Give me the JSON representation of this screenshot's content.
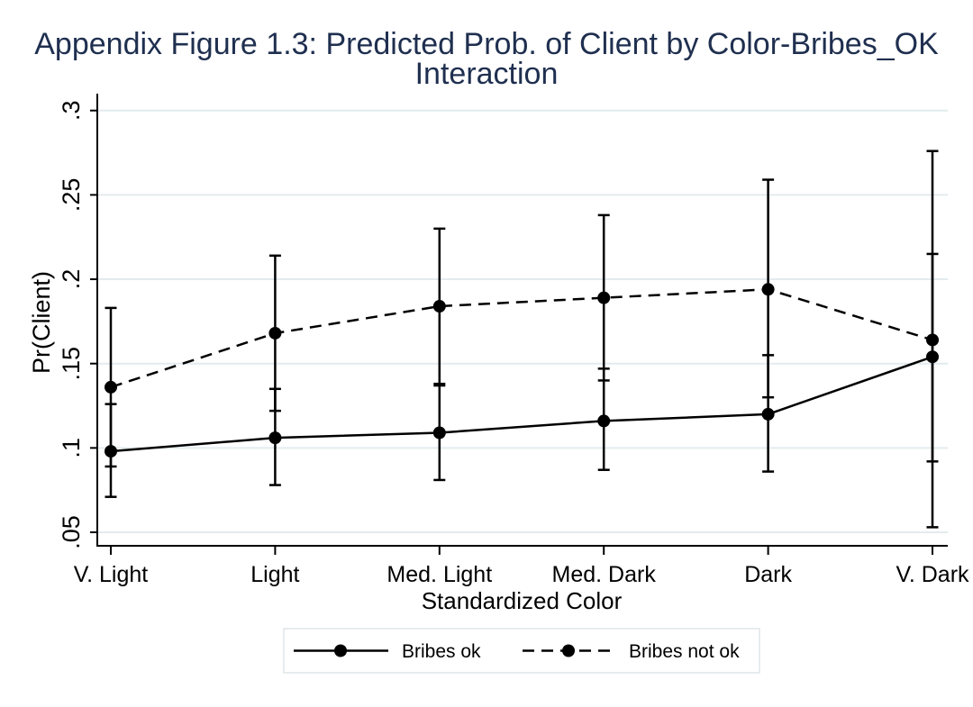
{
  "chart_data": {
    "type": "line",
    "title": "Appendix Figure 1.3: Predicted Prob. of Client by Color-Bribes_OK Interaction",
    "xlabel": "Standardized Color",
    "ylabel": "Pr(Client)",
    "categories": [
      "V. Light",
      "Light",
      "Med. Light",
      "Med. Dark",
      "Dark",
      "V. Dark"
    ],
    "ylim": [
      0.042,
      0.31
    ],
    "yticks": [
      0.05,
      0.1,
      0.15,
      0.2,
      0.25,
      0.3
    ],
    "ytick_labels": [
      ".05",
      ".1",
      ".15",
      ".2",
      ".25",
      ".3"
    ],
    "grid": true,
    "legend_position": "bottom",
    "series": [
      {
        "name": "Bribes ok",
        "dashed": false,
        "color": "#000000",
        "values": [
          0.098,
          0.106,
          0.109,
          0.116,
          0.12,
          0.154
        ],
        "ci_lower": [
          0.071,
          0.078,
          0.081,
          0.087,
          0.086,
          0.092
        ],
        "ci_upper": [
          0.126,
          0.135,
          0.137,
          0.147,
          0.155,
          0.215
        ]
      },
      {
        "name": "Bribes not ok",
        "dashed": true,
        "color": "#000000",
        "values": [
          0.136,
          0.168,
          0.184,
          0.189,
          0.194,
          0.164
        ],
        "ci_lower": [
          0.089,
          0.122,
          0.138,
          0.14,
          0.13,
          0.053
        ],
        "ci_upper": [
          0.183,
          0.214,
          0.23,
          0.238,
          0.259,
          0.276
        ]
      }
    ]
  },
  "colors": {
    "title": "#1f2f4f",
    "axis": "#000000",
    "gridline": "#e4ebee",
    "legend_border": "#dfe5e8",
    "background": "#ffffff"
  }
}
